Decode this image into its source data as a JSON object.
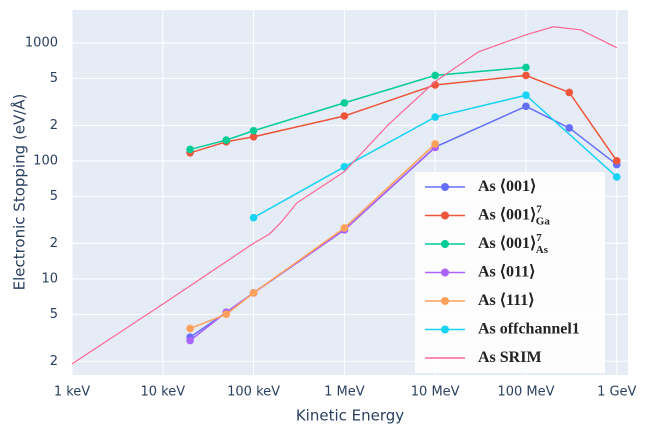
{
  "chart_data": {
    "type": "line",
    "x_label": "Kinetic Energy",
    "y_label": "Electronic Stopping (eV/Å)",
    "xlog": true,
    "ylog": true,
    "grid": true,
    "legend_position": "lower right",
    "xlim": [
      1000,
      1330000000
    ],
    "ylim": [
      1.53,
      1900
    ],
    "xticks": [
      {
        "value": 1000,
        "label": "1 keV"
      },
      {
        "value": 10000,
        "label": "10 keV"
      },
      {
        "value": 100000,
        "label": "100 keV"
      },
      {
        "value": 1000000,
        "label": "1 MeV"
      },
      {
        "value": 10000000,
        "label": "10 MeV"
      },
      {
        "value": 100000000,
        "label": "100 MeV"
      },
      {
        "value": 1000000000,
        "label": "1 GeV"
      }
    ],
    "yticks": [
      2,
      5,
      10,
      {
        "value": 20,
        "label": "2"
      },
      {
        "value": 50,
        "label": "5"
      },
      100,
      {
        "value": 200,
        "label": "2"
      },
      {
        "value": 500,
        "label": "5"
      },
      1000
    ],
    "series": [
      {
        "name": "As ⟨001⟩",
        "color": "#636efa",
        "mode": "lines+markers",
        "x": [
          20000,
          50000,
          100000,
          1000000,
          10000000,
          100000000,
          300000000,
          1000000000
        ],
        "values": [
          3.2,
          5.2,
          7.6,
          26,
          131,
          290,
          190,
          93
        ]
      },
      {
        "name": "As ⟨001⟩",
        "sup": "7",
        "sub": "Ga",
        "color": "#ef553b",
        "mode": "lines+markers",
        "x": [
          20000,
          50000,
          100000,
          1000000,
          10000000,
          100000000,
          300000000,
          1000000000
        ],
        "values": [
          117,
          145,
          160,
          240,
          440,
          530,
          380,
          100
        ]
      },
      {
        "name": "As ⟨001⟩",
        "sup": "7",
        "sub": "As",
        "color": "#00cc96",
        "mode": "lines+markers",
        "x": [
          20000,
          50000,
          100000,
          1000000,
          10000000,
          100000000
        ],
        "values": [
          125,
          150,
          180,
          310,
          530,
          620
        ]
      },
      {
        "name": "As ⟨011⟩",
        "color": "#ab63fa",
        "mode": "lines+markers",
        "x": [
          20000,
          50000,
          100000,
          1000000,
          10000000
        ],
        "values": [
          3.0,
          5.2,
          7.6,
          26,
          130
        ]
      },
      {
        "name": "As ⟨111⟩",
        "color": "#ffa15a",
        "mode": "lines+markers",
        "x": [
          20000,
          50000,
          100000,
          1000000,
          10000000
        ],
        "values": [
          3.8,
          5.0,
          7.6,
          27,
          139
        ]
      },
      {
        "name": "As offchannel1",
        "color": "#19d3f3",
        "mode": "lines+markers",
        "x": [
          100000,
          1000000,
          10000000,
          100000000,
          1000000000
        ],
        "values": [
          33,
          89,
          235,
          360,
          73
        ]
      },
      {
        "name": "As SRIM",
        "color": "#ff6692",
        "mode": "lines",
        "x": [
          1000,
          10000,
          100000,
          150000,
          200000,
          300000,
          1000000,
          3000000,
          10000000,
          30000000,
          100000000,
          200000000,
          400000000,
          1000000000
        ],
        "values": [
          1.9,
          6.1,
          20,
          24,
          30,
          44,
          81,
          200,
          470,
          840,
          1170,
          1370,
          1290,
          910
        ]
      }
    ]
  }
}
